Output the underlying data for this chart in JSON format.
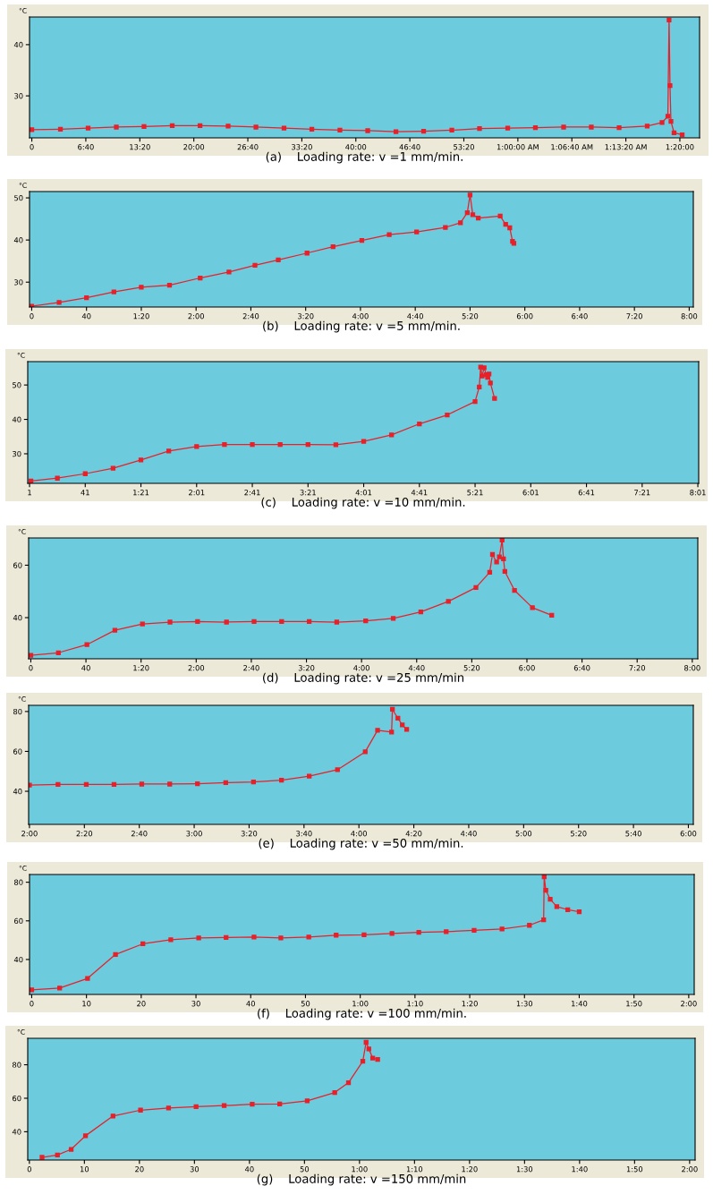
{
  "chart_data": [
    {
      "type": "line",
      "title": "(a)    Loading rate: v =1 mm/min.",
      "ylabel": "°C",
      "marker": "square",
      "line_style": "solid",
      "xlim": [
        -17,
        4946
      ],
      "ylim": [
        21.8,
        45.4
      ],
      "yticks": [
        30,
        40
      ],
      "xticks": [
        {
          "value": 0,
          "label": "0"
        },
        {
          "value": 400,
          "label": "6:40"
        },
        {
          "value": 800,
          "label": "13:20"
        },
        {
          "value": 1200,
          "label": "20:00"
        },
        {
          "value": 1600,
          "label": "26:40"
        },
        {
          "value": 2000,
          "label": "33:20"
        },
        {
          "value": 2400,
          "label": "40:00"
        },
        {
          "value": 2800,
          "label": "46:40"
        },
        {
          "value": 3200,
          "label": "53:20"
        },
        {
          "value": 3600,
          "label": "1:00:00 AM"
        },
        {
          "value": 4000,
          "label": "1:06:40 AM"
        },
        {
          "value": 4400,
          "label": "1:13:20 AM"
        },
        {
          "value": 4800,
          "label": "1:20:00"
        }
      ],
      "x": [
        0,
        212,
        417,
        626,
        831,
        1040,
        1246,
        1454,
        1660,
        1868,
        2074,
        2282,
        2488,
        2697,
        2902,
        3111,
        3316,
        3525,
        3730,
        3939,
        4144,
        4350,
        4558,
        4668,
        4711,
        4720,
        4727,
        4734,
        4757,
        4817
      ],
      "series": [
        {
          "color": "#e8202a",
          "values": [
            23.4,
            23.5,
            23.7,
            23.9,
            24.0,
            24.2,
            24.2,
            24.1,
            23.9,
            23.7,
            23.5,
            23.3,
            23.2,
            23.0,
            23.1,
            23.3,
            23.6,
            23.7,
            23.8,
            23.9,
            23.9,
            23.8,
            24.1,
            24.8,
            26,
            44.8,
            32,
            25,
            22.8,
            22.4
          ]
        }
      ]
    },
    {
      "type": "line",
      "title": "(b)    Loading rate: v =5 mm/min.",
      "ylabel": "°C",
      "marker": "square",
      "line_style": "solid",
      "xlim": [
        -1.6,
        483
      ],
      "ylim": [
        24.1,
        51.5
      ],
      "yticks": [
        30,
        40,
        50
      ],
      "xticks": [
        {
          "value": 0,
          "label": "0"
        },
        {
          "value": 40,
          "label": "40"
        },
        {
          "value": 80,
          "label": "1:20"
        },
        {
          "value": 120,
          "label": "2:00"
        },
        {
          "value": 160,
          "label": "2:40"
        },
        {
          "value": 200,
          "label": "3:20"
        },
        {
          "value": 240,
          "label": "4:00"
        },
        {
          "value": 280,
          "label": "4:40"
        },
        {
          "value": 320,
          "label": "5:20"
        },
        {
          "value": 360,
          "label": "6:00"
        },
        {
          "value": 400,
          "label": "6:40"
        },
        {
          "value": 440,
          "label": "7:20"
        },
        {
          "value": 480,
          "label": "8:00"
        }
      ],
      "x": [
        0,
        20,
        40,
        60,
        80,
        100.6,
        123,
        144,
        163,
        180,
        201,
        220,
        241,
        261,
        281,
        302,
        313,
        318,
        320,
        322,
        326,
        342,
        346,
        349,
        351,
        352
      ],
      "series": [
        {
          "color": "#e8202a",
          "values": [
            24.3,
            25.2,
            26.3,
            27.7,
            28.8,
            29.3,
            31.0,
            32.4,
            34.0,
            35.3,
            36.9,
            38.4,
            39.9,
            41.3,
            41.9,
            43.0,
            44.1,
            46.5,
            50.7,
            46,
            45.2,
            45.7,
            43.7,
            42.9,
            39.7,
            39.2
          ]
        }
      ]
    },
    {
      "type": "line",
      "title": "(c)    Loading rate: v =10 mm/min.",
      "ylabel": "°C",
      "marker": "square",
      "line_style": "solid",
      "xlim": [
        -0.3,
        481.6
      ],
      "ylim": [
        21.4,
        56.8
      ],
      "yticks": [
        30,
        40,
        50
      ],
      "xticks": [
        {
          "value": 1,
          "label": "1"
        },
        {
          "value": 41,
          "label": "41"
        },
        {
          "value": 81,
          "label": "1:21"
        },
        {
          "value": 121,
          "label": "2:01"
        },
        {
          "value": 161,
          "label": "2:41"
        },
        {
          "value": 201,
          "label": "3:21"
        },
        {
          "value": 241,
          "label": "4:01"
        },
        {
          "value": 281,
          "label": "4:41"
        },
        {
          "value": 321,
          "label": "5:21"
        },
        {
          "value": 361,
          "label": "6:01"
        },
        {
          "value": 401,
          "label": "6:41"
        },
        {
          "value": 441,
          "label": "7:21"
        },
        {
          "value": 481,
          "label": "8:01"
        }
      ],
      "x": [
        2,
        21,
        41,
        61,
        81,
        101,
        121,
        141,
        161,
        181,
        201,
        221,
        241,
        261,
        281,
        301,
        321,
        324,
        325,
        326,
        327.5,
        329,
        330,
        331,
        332,
        335
      ],
      "series": [
        {
          "color": "#e8202a",
          "values": [
            22.1,
            22.9,
            24.2,
            25.8,
            28.2,
            30.8,
            32.1,
            32.7,
            32.7,
            32.7,
            32.7,
            32.6,
            33.6,
            35.5,
            38.7,
            41.3,
            45.2,
            49.4,
            55.2,
            52.6,
            55,
            53,
            52.2,
            53.2,
            50.6,
            46.1
          ]
        }
      ]
    },
    {
      "type": "line",
      "title": "(d)    Loading rate: v =25 mm/min",
      "ylabel": "°C",
      "marker": "square",
      "line_style": "solid",
      "xlim": [
        -1.6,
        484
      ],
      "ylim": [
        24.3,
        70.4
      ],
      "yticks": [
        40,
        60
      ],
      "xticks": [
        {
          "value": 0,
          "label": "0"
        },
        {
          "value": 40,
          "label": "40"
        },
        {
          "value": 80,
          "label": "1:20"
        },
        {
          "value": 120,
          "label": "2:00"
        },
        {
          "value": 160,
          "label": "2:40"
        },
        {
          "value": 200,
          "label": "3:20"
        },
        {
          "value": 240,
          "label": "4:00"
        },
        {
          "value": 280,
          "label": "4:40"
        },
        {
          "value": 320,
          "label": "5:20"
        },
        {
          "value": 360,
          "label": "6:00"
        },
        {
          "value": 400,
          "label": "6:40"
        },
        {
          "value": 440,
          "label": "7:20"
        },
        {
          "value": 480,
          "label": "8:00"
        }
      ],
      "x": [
        0,
        20,
        40.7,
        61,
        81,
        101,
        121,
        142,
        162,
        182,
        202,
        222,
        243,
        263,
        283,
        303,
        323,
        333,
        335,
        338,
        340,
        342,
        343,
        344,
        351,
        364,
        378
      ],
      "series": [
        {
          "color": "#e8202a",
          "values": [
            25.6,
            26.6,
            29.7,
            35.2,
            37.6,
            38.3,
            38.5,
            38.3,
            38.5,
            38.5,
            38.5,
            38.3,
            38.8,
            39.7,
            42.2,
            46.2,
            51.5,
            57.3,
            64.1,
            61.2,
            63.2,
            69.6,
            62.4,
            57.6,
            50.4,
            43.8,
            40.9
          ]
        }
      ]
    },
    {
      "type": "line",
      "title": "(e)    Loading rate: v =50 mm/min.",
      "ylabel": "°C",
      "marker": "square",
      "line_style": "solid",
      "xlim": [
        119.7,
        361.8
      ],
      "ylim": [
        23.4,
        83.1
      ],
      "yticks": [
        40,
        60,
        80
      ],
      "xticks": [
        {
          "value": 120,
          "label": "2:00"
        },
        {
          "value": 140,
          "label": "2:20"
        },
        {
          "value": 160,
          "label": "2:40"
        },
        {
          "value": 180,
          "label": "3:00"
        },
        {
          "value": 200,
          "label": "3:20"
        },
        {
          "value": 220,
          "label": "3:40"
        },
        {
          "value": 240,
          "label": "4:00"
        },
        {
          "value": 260,
          "label": "4:20"
        },
        {
          "value": 280,
          "label": "4:40"
        },
        {
          "value": 300,
          "label": "5:00"
        },
        {
          "value": 320,
          "label": "5:20"
        },
        {
          "value": 340,
          "label": "5:40"
        },
        {
          "value": 360,
          "label": "6:00"
        }
      ],
      "x": [
        120,
        130.4,
        140.7,
        150.8,
        160.9,
        171.1,
        181.2,
        191.5,
        201.6,
        211.8,
        221.9,
        232.2,
        242.3,
        246.8,
        251.9,
        252.2,
        254.2,
        255.8,
        257.4
      ],
      "series": [
        {
          "color": "#e8202a",
          "values": [
            43.1,
            43.4,
            43.4,
            43.4,
            43.6,
            43.6,
            43.8,
            44.3,
            44.7,
            45.6,
            47.6,
            50.8,
            59.8,
            70.6,
            69.7,
            81.1,
            76.6,
            73.3,
            71
          ]
        }
      ]
    },
    {
      "type": "line",
      "title": "(f)    Loading rate: v =100 mm/min.",
      "ylabel": "°C",
      "marker": "square",
      "line_style": "solid",
      "xlim": [
        -0.4,
        121
      ],
      "ylim": [
        21.9,
        84
      ],
      "yticks": [
        40,
        60,
        80
      ],
      "xticks": [
        {
          "value": 0,
          "label": "0"
        },
        {
          "value": 10,
          "label": "10"
        },
        {
          "value": 20,
          "label": "20"
        },
        {
          "value": 30,
          "label": "30"
        },
        {
          "value": 40,
          "label": "40"
        },
        {
          "value": 50,
          "label": "50"
        },
        {
          "value": 60,
          "label": "1:00"
        },
        {
          "value": 70,
          "label": "1:10"
        },
        {
          "value": 80,
          "label": "1:20"
        },
        {
          "value": 90,
          "label": "1:30"
        },
        {
          "value": 100,
          "label": "1:40"
        },
        {
          "value": 110,
          "label": "1:50"
        },
        {
          "value": 120,
          "label": "2:00"
        }
      ],
      "x": [
        0,
        5.1,
        10.2,
        15.3,
        20.3,
        25.4,
        30.5,
        35.5,
        40.6,
        45.5,
        50.6,
        55.6,
        60.7,
        65.8,
        70.7,
        75.7,
        80.8,
        85.9,
        90.9,
        93.5,
        93.6,
        93.9,
        94.7,
        95.9,
        97.9,
        100
      ],
      "series": [
        {
          "color": "#e8202a",
          "values": [
            24.3,
            25.2,
            30.2,
            42.6,
            48.1,
            50.2,
            51.2,
            51.4,
            51.6,
            51.2,
            51.6,
            52.6,
            52.8,
            53.5,
            54.0,
            54.4,
            55.1,
            55.8,
            57.7,
            60.5,
            82.8,
            75.8,
            71.2,
            67.4,
            65.8,
            64.7
          ]
        }
      ]
    },
    {
      "type": "line",
      "title": "(g)    Loading rate: v =150 mm/min",
      "ylabel": "°C",
      "marker": "square",
      "line_style": "solid",
      "xlim": [
        -0.3,
        121
      ],
      "ylim": [
        23.1,
        95.8
      ],
      "yticks": [
        40,
        60,
        80
      ],
      "xticks": [
        {
          "value": 0,
          "label": "0"
        },
        {
          "value": 10,
          "label": "10"
        },
        {
          "value": 20,
          "label": "20"
        },
        {
          "value": 30,
          "label": "30"
        },
        {
          "value": 40,
          "label": "40"
        },
        {
          "value": 50,
          "label": "50"
        },
        {
          "value": 60,
          "label": "1:00"
        },
        {
          "value": 70,
          "label": "1:10"
        },
        {
          "value": 80,
          "label": "1:20"
        },
        {
          "value": 90,
          "label": "1:30"
        },
        {
          "value": 100,
          "label": "1:40"
        },
        {
          "value": 110,
          "label": "1:50"
        },
        {
          "value": 120,
          "label": "2:00"
        }
      ],
      "x": [
        2.3,
        5.1,
        7.6,
        10.2,
        15.2,
        20.2,
        25.3,
        30.3,
        35.4,
        40.5,
        45.5,
        50.5,
        55.5,
        58,
        60.6,
        61.2,
        61.7,
        62.4,
        63.3
      ],
      "series": [
        {
          "color": "#e8202a",
          "values": [
            24.7,
            26.1,
            29.5,
            37.6,
            49.4,
            52.9,
            54.2,
            55.0,
            55.6,
            56.4,
            56.6,
            58.5,
            63.4,
            69.3,
            82.1,
            93.4,
            89.4,
            84,
            83.2
          ]
        }
      ]
    }
  ]
}
